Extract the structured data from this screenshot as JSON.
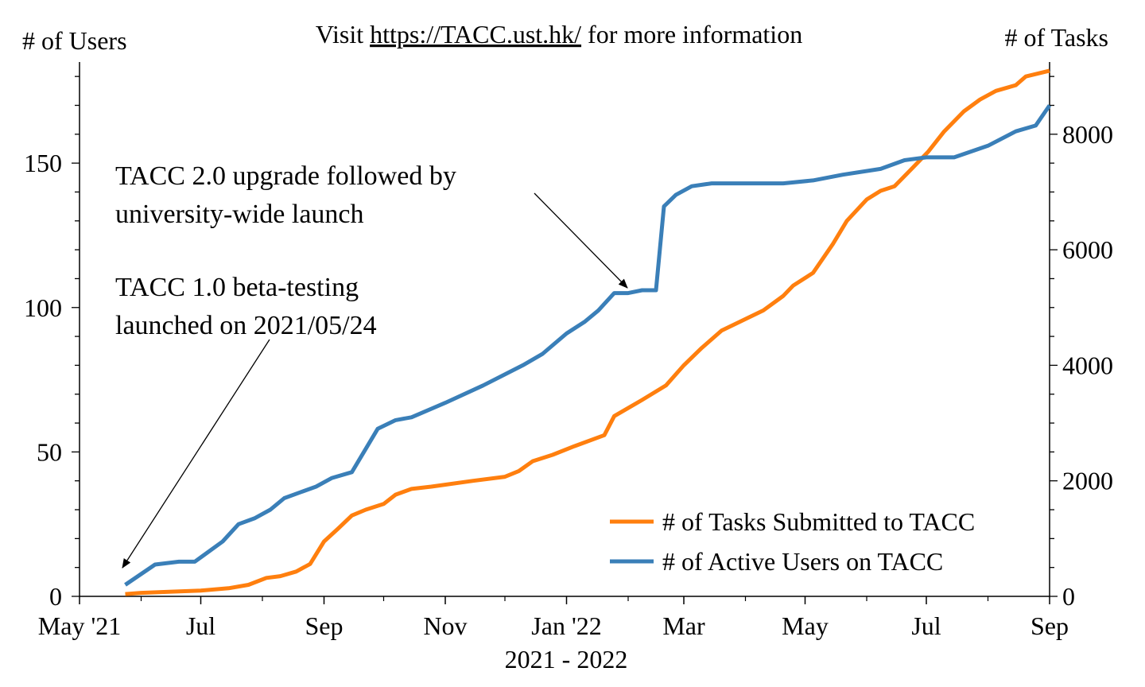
{
  "header": {
    "visit_prefix": "Visit ",
    "visit_link": "https://TACC.ust.hk/",
    "visit_suffix": " for more information"
  },
  "chart_data": {
    "type": "line",
    "xlabel": "2021 - 2022",
    "ylabel_left": "# of Users",
    "ylabel_right": "# of Tasks",
    "x_range": [
      "2021-05-01",
      "2022-09-01"
    ],
    "x_ticks": [
      {
        "date": "2021-05-01",
        "label": "May '21"
      },
      {
        "date": "2021-07-01",
        "label": "Jul"
      },
      {
        "date": "2021-09-01",
        "label": "Sep"
      },
      {
        "date": "2021-11-01",
        "label": "Nov"
      },
      {
        "date": "2022-01-01",
        "label": "Jan '22"
      },
      {
        "date": "2022-03-01",
        "label": "Mar"
      },
      {
        "date": "2022-05-01",
        "label": "May"
      },
      {
        "date": "2022-07-01",
        "label": "Jul"
      },
      {
        "date": "2022-09-01",
        "label": "Sep"
      }
    ],
    "x_minor_ticks": [
      "2021-06-01",
      "2021-08-01",
      "2021-10-01",
      "2021-12-01",
      "2022-02-01",
      "2022-04-01",
      "2022-06-01",
      "2022-08-01"
    ],
    "y_left": {
      "range": [
        0,
        185
      ],
      "ticks": [
        0,
        50,
        100,
        150
      ],
      "minor_step": 10
    },
    "y_right": {
      "range": [
        0,
        9250
      ],
      "ticks": [
        0,
        2000,
        4000,
        6000,
        8000
      ],
      "minor_step": 500
    },
    "grid": false,
    "legend_position": "bottom-right",
    "series": [
      {
        "name": "# of Tasks Submitted to TACC",
        "axis": "right",
        "color": "#ff7f0e",
        "points": [
          [
            "2021-05-24",
            40
          ],
          [
            "2021-06-01",
            60
          ],
          [
            "2021-06-15",
            80
          ],
          [
            "2021-07-01",
            100
          ],
          [
            "2021-07-15",
            140
          ],
          [
            "2021-07-25",
            200
          ],
          [
            "2021-08-03",
            320
          ],
          [
            "2021-08-10",
            350
          ],
          [
            "2021-08-18",
            430
          ],
          [
            "2021-08-25",
            560
          ],
          [
            "2021-09-01",
            950
          ],
          [
            "2021-09-08",
            1170
          ],
          [
            "2021-09-15",
            1400
          ],
          [
            "2021-09-22",
            1500
          ],
          [
            "2021-10-01",
            1600
          ],
          [
            "2021-10-07",
            1760
          ],
          [
            "2021-10-15",
            1860
          ],
          [
            "2021-10-25",
            1900
          ],
          [
            "2021-11-15",
            2000
          ],
          [
            "2021-12-01",
            2070
          ],
          [
            "2021-12-08",
            2170
          ],
          [
            "2021-12-15",
            2340
          ],
          [
            "2021-12-25",
            2450
          ],
          [
            "2022-01-05",
            2600
          ],
          [
            "2022-01-20",
            2790
          ],
          [
            "2022-01-25",
            3120
          ],
          [
            "2022-02-08",
            3400
          ],
          [
            "2022-02-20",
            3650
          ],
          [
            "2022-03-01",
            4000
          ],
          [
            "2022-03-10",
            4300
          ],
          [
            "2022-03-20",
            4600
          ],
          [
            "2022-04-01",
            4800
          ],
          [
            "2022-04-10",
            4950
          ],
          [
            "2022-04-20",
            5200
          ],
          [
            "2022-04-25",
            5380
          ],
          [
            "2022-05-05",
            5600
          ],
          [
            "2022-05-15",
            6100
          ],
          [
            "2022-05-22",
            6500
          ],
          [
            "2022-06-01",
            6870
          ],
          [
            "2022-06-08",
            7020
          ],
          [
            "2022-06-15",
            7100
          ],
          [
            "2022-06-25",
            7450
          ],
          [
            "2022-07-02",
            7700
          ],
          [
            "2022-07-10",
            8050
          ],
          [
            "2022-07-20",
            8400
          ],
          [
            "2022-07-28",
            8600
          ],
          [
            "2022-08-05",
            8750
          ],
          [
            "2022-08-15",
            8850
          ],
          [
            "2022-08-20",
            9000
          ],
          [
            "2022-09-01",
            9100
          ]
        ]
      },
      {
        "name": "# of Active Users on TACC",
        "axis": "left",
        "color": "#3a7fb8",
        "points": [
          [
            "2021-05-24",
            4
          ],
          [
            "2021-06-08",
            11
          ],
          [
            "2021-06-20",
            12
          ],
          [
            "2021-06-28",
            12
          ],
          [
            "2021-07-12",
            19
          ],
          [
            "2021-07-20",
            25
          ],
          [
            "2021-07-28",
            27
          ],
          [
            "2021-08-05",
            30
          ],
          [
            "2021-08-12",
            34
          ],
          [
            "2021-08-20",
            36
          ],
          [
            "2021-08-28",
            38
          ],
          [
            "2021-09-05",
            41
          ],
          [
            "2021-09-15",
            43
          ],
          [
            "2021-09-28",
            58
          ],
          [
            "2021-10-07",
            61
          ],
          [
            "2021-10-15",
            62
          ],
          [
            "2021-11-01",
            67
          ],
          [
            "2021-11-20",
            73
          ],
          [
            "2021-12-10",
            80
          ],
          [
            "2021-12-20",
            84
          ],
          [
            "2022-01-01",
            91
          ],
          [
            "2022-01-10",
            95
          ],
          [
            "2022-01-17",
            99
          ],
          [
            "2022-01-25",
            105
          ],
          [
            "2022-02-01",
            105
          ],
          [
            "2022-02-08",
            106
          ],
          [
            "2022-02-15",
            106
          ],
          [
            "2022-02-19",
            135
          ],
          [
            "2022-02-25",
            139
          ],
          [
            "2022-03-05",
            142
          ],
          [
            "2022-03-15",
            143
          ],
          [
            "2022-04-01",
            143
          ],
          [
            "2022-04-20",
            143
          ],
          [
            "2022-05-05",
            144
          ],
          [
            "2022-05-20",
            146
          ],
          [
            "2022-06-08",
            148
          ],
          [
            "2022-06-20",
            151
          ],
          [
            "2022-07-01",
            152
          ],
          [
            "2022-07-15",
            152
          ],
          [
            "2022-08-01",
            156
          ],
          [
            "2022-08-15",
            161
          ],
          [
            "2022-08-25",
            163
          ],
          [
            "2022-09-01",
            170
          ]
        ]
      }
    ],
    "annotations": [
      {
        "lines": [
          "TACC 2.0 upgrade followed by",
          "university-wide launch"
        ],
        "arrow_target": {
          "date": "2022-02-01",
          "users": 110
        }
      },
      {
        "lines": [
          "TACC 1.0 beta-testing",
          "launched on 2021/05/24"
        ],
        "arrow_target": {
          "date": "2021-05-24",
          "users": 10
        }
      }
    ]
  }
}
